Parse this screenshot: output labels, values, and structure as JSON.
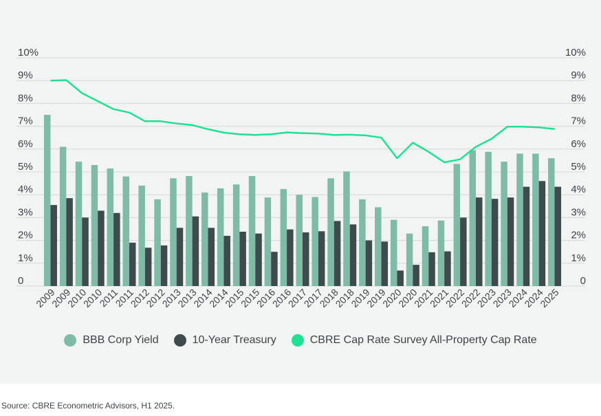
{
  "chart_data": {
    "type": "bar+line",
    "title": "",
    "xlabel": "",
    "ylabel": "",
    "ylim": [
      0,
      10
    ],
    "y_ticks": [
      "0",
      "1%",
      "2%",
      "3%",
      "4%",
      "5%",
      "6%",
      "7%",
      "8%",
      "9%",
      "10%"
    ],
    "categories": [
      "2009",
      "2009",
      "2010",
      "2010",
      "2011",
      "2011",
      "2012",
      "2012",
      "2013",
      "2013",
      "2014",
      "2014",
      "2015",
      "2015",
      "2016",
      "2016",
      "2017",
      "2017",
      "2018",
      "2018",
      "2019",
      "2019",
      "2020",
      "2020",
      "2021",
      "2021",
      "2022",
      "2022",
      "2023",
      "2023",
      "2024",
      "2024",
      "2025"
    ],
    "series": [
      {
        "name": "BBB Corp Yield",
        "kind": "bar",
        "color": "#80bba8",
        "values": [
          7.5,
          6.1,
          5.45,
          5.3,
          5.15,
          4.8,
          4.4,
          3.8,
          4.72,
          4.82,
          4.1,
          4.28,
          4.45,
          4.82,
          3.88,
          4.25,
          4.0,
          3.9,
          4.72,
          5.02,
          3.8,
          3.45,
          2.9,
          2.3,
          2.62,
          2.87,
          5.35,
          5.95,
          5.88,
          5.45,
          5.8,
          5.8,
          5.6
        ]
      },
      {
        "name": "10-Year Treasury",
        "kind": "bar",
        "color": "#3e4b4d",
        "values": [
          3.55,
          3.85,
          3.0,
          3.3,
          3.2,
          1.9,
          1.68,
          1.78,
          2.55,
          3.05,
          2.55,
          2.2,
          2.38,
          2.3,
          1.5,
          2.48,
          2.35,
          2.4,
          2.85,
          2.7,
          2.0,
          1.95,
          0.68,
          0.93,
          1.48,
          1.52,
          3.0,
          3.88,
          3.82,
          3.88,
          4.35,
          4.6,
          4.35
        ]
      },
      {
        "name": "CBRE Cap Rate Survey All-Property Cap Rate",
        "kind": "line",
        "color": "#1ee193",
        "values": [
          9.0,
          9.02,
          8.45,
          8.1,
          7.75,
          7.6,
          7.22,
          7.22,
          7.12,
          7.05,
          6.87,
          6.72,
          6.65,
          6.62,
          6.65,
          6.73,
          6.7,
          6.68,
          6.62,
          6.63,
          6.6,
          6.5,
          5.6,
          6.28,
          5.88,
          5.42,
          5.55,
          6.1,
          6.45,
          6.98,
          6.98,
          6.95,
          6.88
        ]
      }
    ],
    "legend_position": "bottom-center",
    "grid": true
  },
  "source": "Source: CBRE Econometric Advisors, H1 2025."
}
